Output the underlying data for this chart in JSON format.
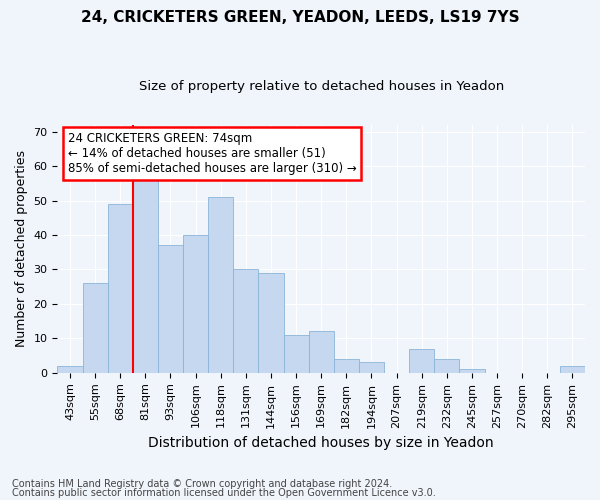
{
  "title1": "24, CRICKETERS GREEN, YEADON, LEEDS, LS19 7YS",
  "title2": "Size of property relative to detached houses in Yeadon",
  "xlabel": "Distribution of detached houses by size in Yeadon",
  "ylabel": "Number of detached properties",
  "categories": [
    "43sqm",
    "55sqm",
    "68sqm",
    "81sqm",
    "93sqm",
    "106sqm",
    "118sqm",
    "131sqm",
    "144sqm",
    "156sqm",
    "169sqm",
    "182sqm",
    "194sqm",
    "207sqm",
    "219sqm",
    "232sqm",
    "245sqm",
    "257sqm",
    "270sqm",
    "282sqm",
    "295sqm"
  ],
  "values": [
    2,
    26,
    49,
    57,
    37,
    40,
    51,
    30,
    29,
    11,
    12,
    4,
    3,
    0,
    7,
    4,
    1,
    0,
    0,
    0,
    2
  ],
  "bar_color": "#C5D8F0",
  "bar_edge_color": "#8AB4D8",
  "red_line_index": 2.5,
  "annotation_line1": "24 CRICKETERS GREEN: 74sqm",
  "annotation_line2": "← 14% of detached houses are smaller (51)",
  "annotation_line3": "85% of semi-detached houses are larger (310) →",
  "annotation_box_color": "white",
  "annotation_box_edge": "red",
  "ylim": [
    0,
    72
  ],
  "yticks": [
    0,
    10,
    20,
    30,
    40,
    50,
    60,
    70
  ],
  "footer1": "Contains HM Land Registry data © Crown copyright and database right 2024.",
  "footer2": "Contains public sector information licensed under the Open Government Licence v3.0.",
  "bg_color": "#F0F4FB",
  "plot_bg_color": "#F0F4FB",
  "title1_fontsize": 11,
  "title2_fontsize": 9.5,
  "xlabel_fontsize": 10,
  "ylabel_fontsize": 9,
  "tick_fontsize": 8,
  "footer_fontsize": 7,
  "annot_fontsize": 8.5
}
